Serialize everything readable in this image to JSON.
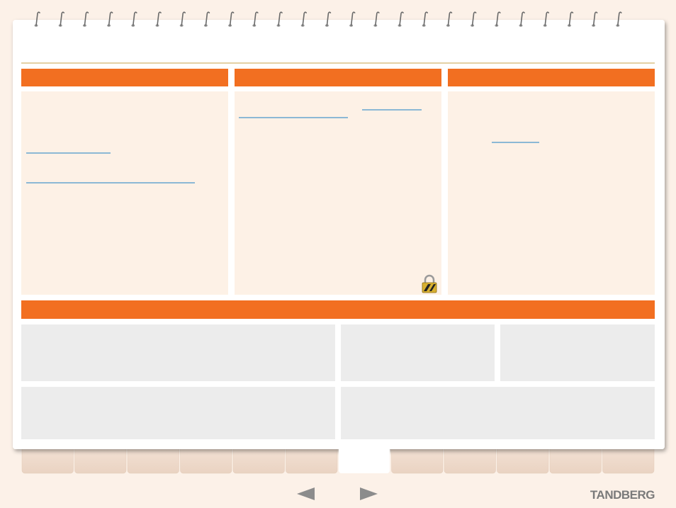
{
  "footer": {
    "brand": "TANDBERG"
  }
}
